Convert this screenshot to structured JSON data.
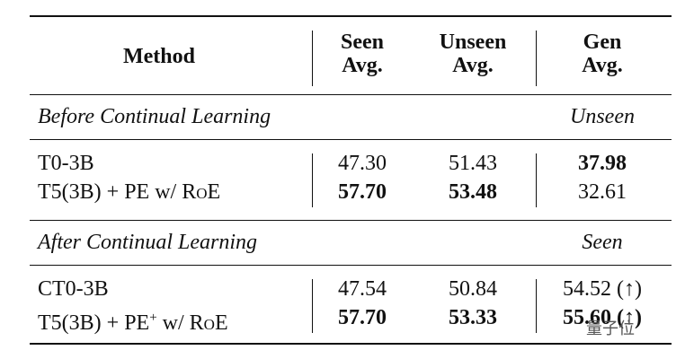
{
  "table": {
    "header": [
      "Method",
      "Seen\nAvg.",
      "Unseen\nAvg.",
      "Gen\nAvg."
    ],
    "sections": [
      {
        "title": "Before Continual Learning",
        "gen_label": "Unseen",
        "rows": [
          {
            "method": [
              {
                "text": "T0-3B"
              }
            ],
            "cells": [
              "47.30",
              "51.43",
              "37.98"
            ],
            "bold": [
              false,
              false,
              true
            ]
          },
          {
            "method": [
              {
                "text": "T5(3B) + PE w/ "
              },
              {
                "text": "RoE",
                "style": "smallcaps"
              }
            ],
            "cells": [
              "57.70",
              "53.48",
              "32.61"
            ],
            "bold": [
              true,
              true,
              false
            ]
          }
        ]
      },
      {
        "title": "After Continual Learning",
        "gen_label": "Seen",
        "rows": [
          {
            "method": [
              {
                "text": "CT0-3B"
              }
            ],
            "cells": [
              "47.54",
              "50.84",
              "54.52 (↑)"
            ],
            "bold": [
              false,
              false,
              false
            ]
          },
          {
            "method": [
              {
                "text": "T5(3B) + PE"
              },
              {
                "text": "+",
                "style": "sup"
              },
              {
                "text": " w/ "
              },
              {
                "text": "RoE",
                "style": "smallcaps"
              }
            ],
            "cells": [
              "57.70",
              "53.33",
              "55.60 (↑)"
            ],
            "bold": [
              true,
              true,
              true
            ]
          }
        ]
      }
    ],
    "watermark": "量子位"
  }
}
